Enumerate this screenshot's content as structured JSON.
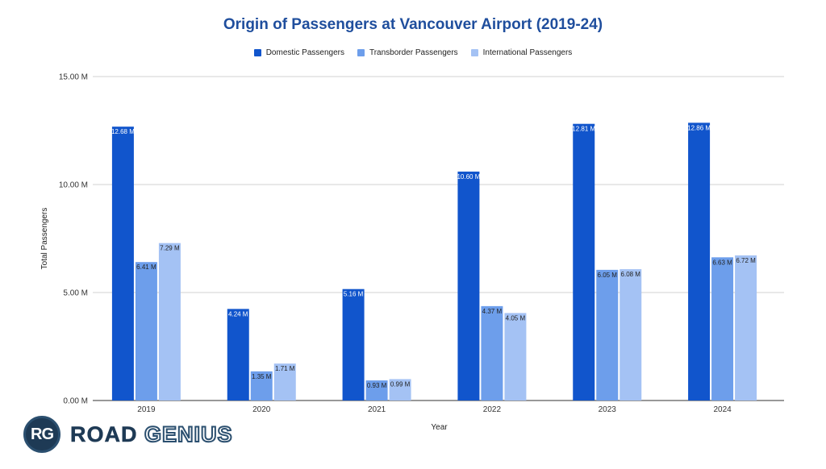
{
  "chart_data": {
    "type": "bar",
    "title": "Origin of Passengers at Vancouver Airport (2019-24)",
    "xlabel": "Year",
    "ylabel": "Total Passengers",
    "categories": [
      "2019",
      "2020",
      "2021",
      "2022",
      "2023",
      "2024"
    ],
    "ylim": [
      0,
      15
    ],
    "yticks": [
      "0.00 M",
      "5.00 M",
      "10.00 M",
      "15.00 M"
    ],
    "grid": true,
    "legend_position": "top",
    "series": [
      {
        "name": "Domestic Passengers",
        "color": "#1155cc",
        "values": [
          12.68,
          4.24,
          5.16,
          10.6,
          12.81,
          12.86
        ],
        "labels": [
          "12.68 M",
          "4.24 M",
          "5.16 M",
          "10.60 M",
          "12.81 M",
          "12.86 M"
        ]
      },
      {
        "name": "Transborder Passengers",
        "color": "#6d9eeb",
        "values": [
          6.41,
          1.35,
          0.93,
          4.37,
          6.05,
          6.63
        ],
        "labels": [
          "6.41 M",
          "1.35 M",
          "0.93 M",
          "4.37 M",
          "6.05 M",
          "6.63 M"
        ]
      },
      {
        "name": "International Passengers",
        "color": "#a4c2f4",
        "values": [
          7.29,
          1.71,
          0.99,
          4.05,
          6.08,
          6.72
        ],
        "labels": [
          "7.29 M",
          "1.71 M",
          "0.99 M",
          "4.05 M",
          "6.08 M",
          "6.72 M"
        ]
      }
    ]
  },
  "logo": {
    "badge": "RG",
    "text_solid": "ROAD",
    "text_outline": "GENIUS"
  }
}
